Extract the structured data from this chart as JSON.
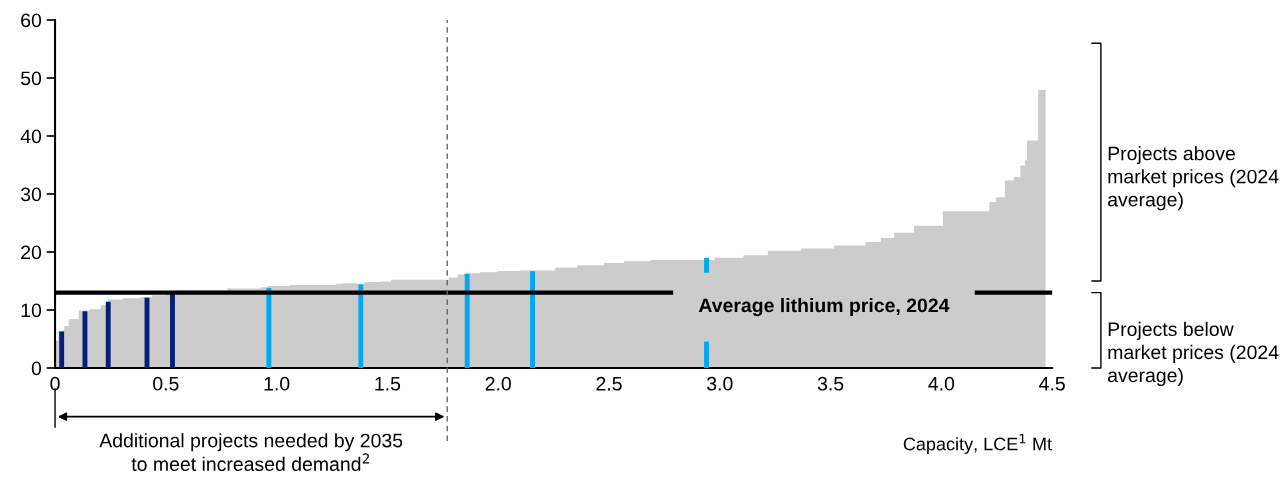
{
  "chart_data": {
    "type": "area",
    "xlabel": "Capacity, LCE$^{1}$ Mt",
    "xlim": [
      0,
      4.5
    ],
    "ylim": [
      0,
      60
    ],
    "xticks": [
      {
        "value": 0,
        "label": "0"
      },
      {
        "value": 0.5,
        "label": "0.5"
      },
      {
        "value": 1.0,
        "label": "1.0"
      },
      {
        "value": 1.5,
        "label": "1.5"
      },
      {
        "value": 2.0,
        "label": "2.0"
      },
      {
        "value": 2.5,
        "label": "2.5"
      },
      {
        "value": 3.0,
        "label": "3.0"
      },
      {
        "value": 3.5,
        "label": "3.5"
      },
      {
        "value": 4.0,
        "label": "4.0"
      },
      {
        "value": 4.5,
        "label": "4.5"
      }
    ],
    "yticks": [
      0,
      10,
      20,
      30,
      40,
      50,
      60
    ],
    "grid": false,
    "legend": false,
    "series": [
      {
        "color": "#cccccc",
        "x": [
          0.0,
          0.018,
          0.018,
          0.045,
          0.045,
          0.065,
          0.065,
          0.11,
          0.11,
          0.158,
          0.158,
          0.21,
          0.21,
          0.24,
          0.24,
          0.31,
          0.31,
          0.39,
          0.39,
          0.44,
          0.44,
          0.505,
          0.505,
          0.54,
          0.54,
          0.78,
          0.78,
          0.93,
          0.93,
          0.96,
          0.96,
          1.06,
          1.06,
          1.27,
          1.27,
          1.3,
          1.3,
          1.36,
          1.36,
          1.4,
          1.4,
          1.47,
          1.47,
          1.52,
          1.52,
          1.78,
          1.78,
          1.82,
          1.82,
          1.85,
          1.85,
          1.92,
          1.92,
          2.0,
          2.0,
          2.1,
          2.1,
          2.26,
          2.26,
          2.36,
          2.36,
          2.48,
          2.48,
          2.57,
          2.57,
          2.69,
          2.69,
          2.98,
          2.98,
          3.11,
          3.11,
          3.22,
          3.22,
          3.37,
          3.37,
          3.52,
          3.52,
          3.66,
          3.66,
          3.73,
          3.73,
          3.79,
          3.79,
          3.88,
          3.88,
          4.01,
          4.01,
          4.22,
          4.22,
          4.25,
          4.25,
          4.29,
          4.29,
          4.33,
          4.33,
          4.36,
          4.36,
          4.38,
          4.38,
          4.39,
          4.39,
          4.44,
          4.44,
          4.47
        ],
        "values": [
          4.6,
          4.6,
          6.3,
          6.3,
          7.1,
          7.1,
          8.3,
          8.3,
          9.8,
          9.8,
          10.0,
          10.0,
          10.7,
          10.7,
          11.7,
          11.7,
          11.9,
          11.9,
          12.1,
          12.1,
          12.4,
          12.4,
          12.9,
          12.9,
          13.3,
          13.3,
          13.6,
          13.6,
          13.8,
          13.8,
          14.0,
          14.0,
          14.2,
          14.2,
          14.4,
          14.4,
          14.5,
          14.5,
          14.4,
          14.4,
          14.7,
          14.7,
          14.8,
          14.8,
          15.1,
          15.1,
          15.5,
          15.5,
          16.0,
          16.0,
          16.2,
          16.2,
          16.4,
          16.4,
          16.6,
          16.6,
          16.7,
          16.7,
          17.2,
          17.2,
          17.6,
          17.6,
          18.0,
          18.0,
          18.3,
          18.3,
          18.5,
          18.5,
          18.9,
          18.9,
          19.3,
          19.3,
          20.1,
          20.1,
          20.5,
          20.5,
          21.0,
          21.0,
          21.6,
          21.6,
          22.3,
          22.3,
          23.2,
          23.2,
          24.4,
          24.4,
          26.9,
          26.9,
          28.5,
          28.5,
          29.3,
          29.3,
          32.2,
          32.2,
          32.8,
          32.8,
          34.8,
          34.8,
          35.7,
          35.7,
          39.1,
          39.1,
          47.8,
          47.8
        ]
      },
      {
        "type": "bar",
        "color": "#061e78",
        "x": [
          0.03,
          0.135,
          0.24,
          0.415,
          0.53
        ],
        "values": [
          6.3,
          9.8,
          11.4,
          12.1,
          12.9
        ]
      },
      {
        "type": "bar",
        "color": "#00a9f4",
        "x": [
          0.965,
          1.38,
          1.86,
          2.155,
          2.94
        ],
        "values": [
          13.8,
          14.4,
          16.2,
          16.7,
          19.0
        ]
      }
    ],
    "ref_lines": [
      {
        "axis": "y",
        "value": 13,
        "label": "Average lithium price, 2024",
        "color": "#000000",
        "line_style": "solid"
      },
      {
        "axis": "x",
        "value": 1.77,
        "color": "#666666",
        "line_style": "dashed"
      }
    ],
    "annotations": [
      "Projects above market prices (2024 average)",
      "Projects below market prices (2024 average)",
      "Additional projects needed by 2035\nto meet increased demand$^{2}$"
    ]
  }
}
